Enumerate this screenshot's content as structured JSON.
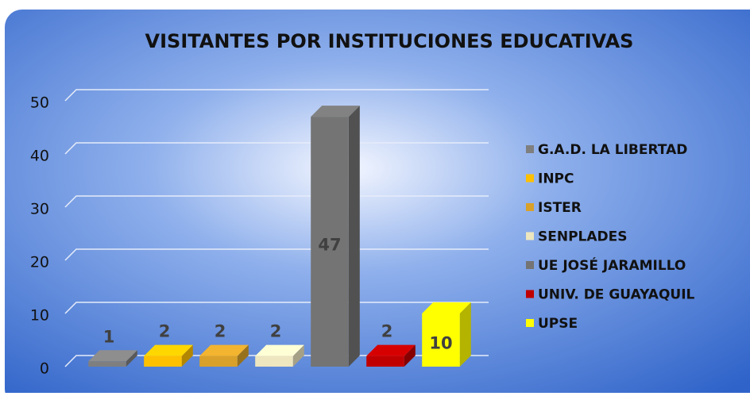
{
  "chart_data": {
    "type": "bar",
    "title": "VISITANTES POR INSTITUCIONES EDUCATIVAS",
    "series": [
      {
        "name": "G.A.D. LA LIBERTAD",
        "color": "#7f7f7f",
        "values": [
          1
        ]
      },
      {
        "name": "INPC",
        "color": "#ffc000",
        "values": [
          2
        ]
      },
      {
        "name": "ISTER",
        "color": "#d9a12a",
        "values": [
          2
        ]
      },
      {
        "name": "SENPLADES",
        "color": "#ede6bf",
        "values": [
          2
        ]
      },
      {
        "name": "UE JOSÉ JARAMILLO",
        "color": "#747474",
        "values": [
          47
        ]
      },
      {
        "name": "UNIV. DE GUAYAQUIL",
        "color": "#c00000",
        "values": [
          2
        ]
      },
      {
        "name": "UPSE",
        "color": "#ffff00",
        "values": [
          10
        ]
      }
    ],
    "ylim": [
      0,
      50
    ],
    "yticks": [
      0,
      10,
      20,
      30,
      40,
      50
    ],
    "grid": true,
    "legend": "right"
  }
}
